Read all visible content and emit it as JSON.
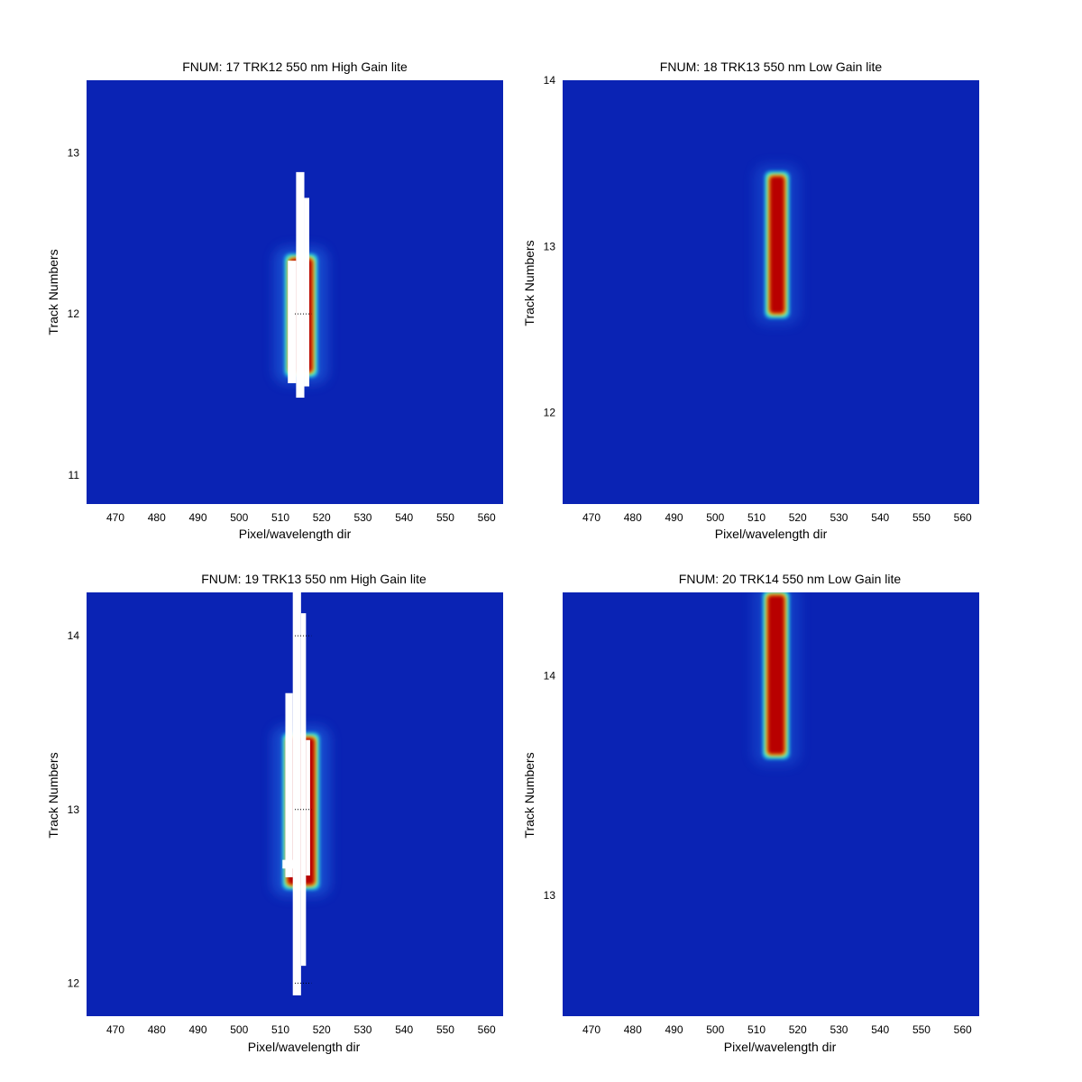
{
  "chart_data": [
    {
      "type": "heatmap",
      "title": "FNUM: 17 TRK12 550 nm High Gain lite",
      "xlabel": "Pixel/wavelength dir",
      "ylabel": "Track Numbers",
      "xlim": [
        463,
        564
      ],
      "ylim": [
        10.82,
        13.45
      ],
      "xticks": [
        470,
        480,
        490,
        500,
        510,
        520,
        530,
        540,
        550,
        560
      ],
      "yticks": [
        11,
        12,
        13
      ],
      "colormap": "jet",
      "background_color": "#0a23b4",
      "hot_region": {
        "x": [
          511.5,
          518.5
        ],
        "y": [
          11.62,
          12.36
        ],
        "style": "saturated"
      },
      "saturated_bars": [
        {
          "x": [
            511.8,
            513.8
          ],
          "y": [
            11.57,
            12.33
          ]
        },
        {
          "x": [
            513.8,
            515.8
          ],
          "y": [
            11.48,
            12.88
          ]
        },
        {
          "x": [
            515.8,
            517.0
          ],
          "y": [
            11.55,
            12.72
          ]
        }
      ],
      "dotted_markers": [
        12.0
      ]
    },
    {
      "type": "heatmap",
      "title": "FNUM: 18 TRK13 550 nm Low Gain lite",
      "xlabel": "Pixel/wavelength dir",
      "ylabel": "",
      "xlim": [
        463,
        564
      ],
      "ylim": [
        11.45,
        14.0
      ],
      "xticks": [
        470,
        480,
        490,
        500,
        510,
        520,
        530,
        540,
        550,
        560
      ],
      "yticks": [
        12,
        13,
        14
      ],
      "colormap": "jet",
      "background_color": "#0a23b4",
      "hot_region": {
        "x": [
          512.5,
          517.5
        ],
        "y": [
          12.58,
          13.44
        ],
        "style": "core"
      },
      "saturated_bars": [],
      "dotted_markers": []
    },
    {
      "type": "heatmap",
      "title": "FNUM: 19 TRK13 550 nm High Gain lite",
      "xlabel": "Pixel/wavelength dir",
      "ylabel": "Track Numbers",
      "xlim": [
        463,
        564
      ],
      "ylim": [
        11.81,
        14.25
      ],
      "xticks": [
        470,
        480,
        490,
        500,
        510,
        520,
        530,
        540,
        550,
        560
      ],
      "yticks": [
        12,
        13,
        14
      ],
      "colormap": "jet",
      "background_color": "#0a23b4",
      "hot_region": {
        "x": [
          511.0,
          519.0
        ],
        "y": [
          12.55,
          13.43
        ],
        "style": "saturated"
      },
      "saturated_bars": [
        {
          "x": [
            511.2,
            513.0
          ],
          "y": [
            12.61,
            13.67
          ]
        },
        {
          "x": [
            513.0,
            515.0
          ],
          "y": [
            11.93,
            14.25
          ]
        },
        {
          "x": [
            515.0,
            516.2
          ],
          "y": [
            12.1,
            14.13
          ]
        },
        {
          "x": [
            516.2,
            517.2
          ],
          "y": [
            12.62,
            13.4
          ]
        },
        {
          "x": [
            510.5,
            514.0
          ],
          "y": [
            12.66,
            12.71
          ]
        }
      ],
      "dotted_markers": [
        12.0,
        13.0,
        14.0
      ]
    },
    {
      "type": "heatmap",
      "title": "FNUM: 20 TRK14 550 nm Low Gain lite",
      "xlabel": "Pixel/wavelength dir",
      "ylabel": "Track Numbers",
      "xlim": [
        463,
        564
      ],
      "ylim": [
        12.45,
        14.38
      ],
      "xticks": [
        470,
        480,
        490,
        500,
        510,
        520,
        530,
        540,
        550,
        560
      ],
      "yticks": [
        13,
        14
      ],
      "colormap": "jet",
      "background_color": "#0a23b4",
      "hot_region": {
        "x": [
          512.0,
          517.5
        ],
        "y": [
          13.63,
          14.38
        ],
        "style": "core"
      },
      "saturated_bars": [],
      "dotted_markers": []
    }
  ]
}
